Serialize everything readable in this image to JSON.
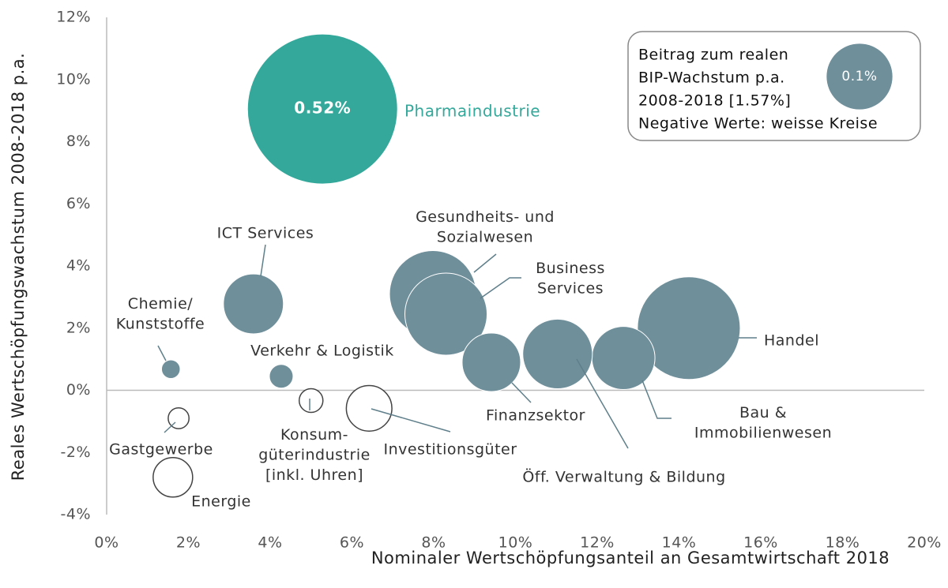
{
  "chart_data": {
    "type": "bubble",
    "x_label": "Nominaler  Wertschöpfungsanteil an Gesamtwirtschaft 2018",
    "y_label": "Reales Wertschöpfungswachstum 2008-2018 p.a.",
    "xlim": [
      0,
      20
    ],
    "xticks": [
      {
        "value": 0,
        "label": "0%"
      },
      {
        "value": 2,
        "label": "2%"
      },
      {
        "value": 4,
        "label": "4%"
      },
      {
        "value": 6,
        "label": "6%"
      },
      {
        "value": 8,
        "label": "8%"
      },
      {
        "value": 10,
        "label": "10%"
      },
      {
        "value": 12,
        "label": "12%"
      },
      {
        "value": 14,
        "label": "14%"
      },
      {
        "value": 16,
        "label": "16%"
      },
      {
        "value": 18,
        "label": "18%"
      },
      {
        "value": 20,
        "label": "20%"
      }
    ],
    "ylim": [
      -4,
      12
    ],
    "yticks": [
      {
        "value": -4,
        "label": "-4%"
      },
      {
        "value": -2,
        "label": "-2%"
      },
      {
        "value": 0,
        "label": "0%"
      },
      {
        "value": 2,
        "label": "2%"
      },
      {
        "value": 4,
        "label": "4%"
      },
      {
        "value": 6,
        "label": "6%"
      },
      {
        "value": 8,
        "label": "8%"
      },
      {
        "value": 10,
        "label": "10%"
      },
      {
        "value": 12,
        "label": "12%"
      }
    ],
    "names": [
      "Pharmaindustrie",
      "Gesundheits- und Sozialwesen",
      "Business Services",
      "Handel",
      "Bau & Immobilienwesen",
      "Öff. Verwaltung & Bildung",
      "Finanzsektor",
      "ICT Services",
      "Chemie/ Kunststoffe",
      "Verkehr & Logistik",
      "Konsum- güterindustrie [inkl. Uhren]",
      "Investitionsgüter",
      "Gastgewerbe",
      "Energie"
    ],
    "x": [
      5.28,
      7.98,
      8.3,
      14.24,
      12.64,
      11.03,
      9.41,
      3.59,
      1.57,
      4.27,
      5.0,
      6.42,
      1.76,
      1.62
    ],
    "values": [
      9.05,
      3.1,
      2.45,
      2.0,
      1.04,
      1.17,
      0.9,
      2.78,
      0.68,
      0.45,
      -0.33,
      -0.58,
      -0.9,
      -2.8
    ],
    "sizes": [
      0.52,
      0.174,
      0.156,
      0.244,
      0.092,
      0.112,
      0.079,
      0.083,
      0.008,
      0.013,
      -0.013,
      -0.048,
      -0.01,
      -0.036
    ],
    "size_labels": [
      "0.52%",
      null,
      null,
      null,
      null,
      null,
      null,
      null,
      null,
      null,
      null,
      null,
      null,
      null
    ],
    "colors": [
      "#34a89a",
      "#6f8f9b",
      "#6f8f9b",
      "#6f8f9b",
      "#6f8f9b",
      "#6f8f9b",
      "#6f8f9b",
      "#6f8f9b",
      "#6f8f9b",
      "#6f8f9b",
      "#6f8f9b",
      "#6f8f9b",
      "#6f8f9b",
      "#6f8f9b"
    ],
    "negative_color": "#ffffff",
    "legend": {
      "lines": [
        "Beitrag zum realen",
        "BIP-Wachstum p.a.",
        "2008-2018 [1.57%]",
        "Negative Werte: weisse Kreise"
      ],
      "size": 0.1,
      "size_label": "0.1%",
      "color": "#6f8f9b"
    }
  }
}
